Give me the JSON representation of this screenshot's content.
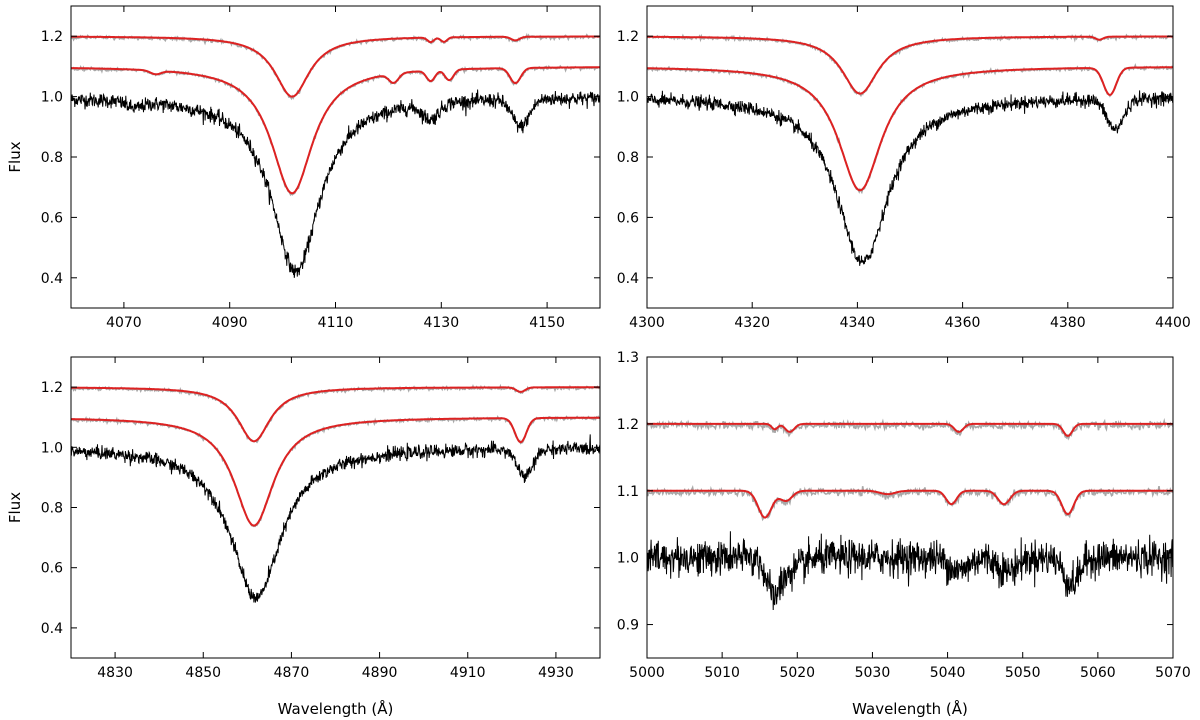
{
  "chart_data": [
    {
      "type": "line",
      "panel": "top-left",
      "title": "",
      "xlabel": "",
      "ylabel": "Flux",
      "xlim": [
        4060,
        4160
      ],
      "ylim": [
        0.3,
        1.3
      ],
      "xticks": [
        4070,
        4090,
        4110,
        4130,
        4150
      ],
      "yticks": [
        0.4,
        0.6,
        0.8,
        1.0,
        1.2
      ],
      "grid": false,
      "series": [
        {
          "role": "observed",
          "color": "#000000",
          "offset": 0.0,
          "noise": 0.012,
          "lines": [
            [
              4102.5,
              0.58,
              5.5,
              "lorentz"
            ],
            [
              4128,
              0.05,
              1.5,
              "gauss"
            ],
            [
              4145,
              0.09,
              1.6,
              "gauss"
            ],
            [
              4072,
              0.02,
              1.5,
              "gauss"
            ]
          ]
        },
        {
          "role": "component-model",
          "color": "#dd2222",
          "offset": 1.1,
          "noise": 0,
          "lines": [
            [
              4101.8,
              0.42,
              4.8,
              "lorentz"
            ],
            [
              4121,
              0.03,
              0.9,
              "gauss"
            ],
            [
              4128,
              0.035,
              0.8,
              "gauss"
            ],
            [
              4131.5,
              0.035,
              0.8,
              "gauss"
            ],
            [
              4144,
              0.05,
              1.0,
              "gauss"
            ],
            [
              4076,
              0.012,
              1.0,
              "gauss"
            ]
          ]
        },
        {
          "role": "component-model",
          "color": "#dd2222",
          "offset": 1.2,
          "noise": 0,
          "lines": [
            [
              4101.8,
              0.2,
              4.0,
              "lorentz"
            ],
            [
              4128,
              0.015,
              0.6,
              "gauss"
            ],
            [
              4130.5,
              0.015,
              0.6,
              "gauss"
            ],
            [
              4144,
              0.012,
              0.8,
              "gauss"
            ]
          ]
        }
      ]
    },
    {
      "type": "line",
      "panel": "top-right",
      "title": "",
      "xlabel": "",
      "ylabel": "",
      "xlim": [
        4300,
        4400
      ],
      "ylim": [
        0.3,
        1.3
      ],
      "xticks": [
        4300,
        4320,
        4340,
        4360,
        4380,
        4400
      ],
      "yticks": [
        0.4,
        0.6,
        0.8,
        1.0,
        1.2
      ],
      "grid": false,
      "series": [
        {
          "role": "observed",
          "color": "#000000",
          "offset": 0.0,
          "noise": 0.011,
          "lines": [
            [
              4341,
              0.55,
              6.0,
              "lorentz"
            ],
            [
              4389,
              0.1,
              1.6,
              "gauss"
            ]
          ]
        },
        {
          "role": "component-model",
          "color": "#dd2222",
          "offset": 1.1,
          "noise": 0,
          "lines": [
            [
              4340.5,
              0.41,
              5.0,
              "lorentz"
            ],
            [
              4388,
              0.09,
              1.2,
              "gauss"
            ]
          ]
        },
        {
          "role": "component-model",
          "color": "#dd2222",
          "offset": 1.2,
          "noise": 0,
          "lines": [
            [
              4340.5,
              0.19,
              4.2,
              "lorentz"
            ],
            [
              4386,
              0.01,
              0.7,
              "gauss"
            ]
          ]
        }
      ]
    },
    {
      "type": "line",
      "panel": "bottom-left",
      "title": "",
      "xlabel": "Wavelength (Å)",
      "ylabel": "Flux",
      "xlim": [
        4820,
        4940
      ],
      "ylim": [
        0.3,
        1.3
      ],
      "xticks": [
        4830,
        4850,
        4870,
        4890,
        4910,
        4930
      ],
      "yticks": [
        0.4,
        0.6,
        0.8,
        1.0,
        1.2
      ],
      "grid": false,
      "series": [
        {
          "role": "observed",
          "color": "#000000",
          "offset": 0.0,
          "noise": 0.011,
          "lines": [
            [
              4862,
              0.5,
              7.0,
              "lorentz"
            ],
            [
              4923,
              0.09,
              1.8,
              "gauss"
            ]
          ]
        },
        {
          "role": "component-model",
          "color": "#dd2222",
          "offset": 1.1,
          "noise": 0,
          "lines": [
            [
              4861.5,
              0.36,
              5.5,
              "lorentz"
            ],
            [
              4922,
              0.08,
              1.3,
              "gauss"
            ]
          ]
        },
        {
          "role": "component-model",
          "color": "#dd2222",
          "offset": 1.2,
          "noise": 0,
          "lines": [
            [
              4861.5,
              0.18,
              4.5,
              "lorentz"
            ],
            [
              4922,
              0.015,
              1.0,
              "gauss"
            ]
          ]
        }
      ]
    },
    {
      "type": "line",
      "panel": "bottom-right",
      "title": "",
      "xlabel": "Wavelength (Å)",
      "ylabel": "",
      "xlim": [
        5000,
        5070
      ],
      "ylim": [
        0.85,
        1.3
      ],
      "xticks": [
        5000,
        5010,
        5020,
        5030,
        5040,
        5050,
        5060,
        5070
      ],
      "yticks": [
        0.9,
        1.0,
        1.1,
        1.2,
        1.3
      ],
      "grid": false,
      "series": [
        {
          "role": "observed",
          "color": "#000000",
          "offset": 0.0,
          "noise": 0.013,
          "lines": [
            [
              5016.8,
              0.05,
              0.9,
              "gauss"
            ],
            [
              5019,
              0.02,
              1.5,
              "gauss"
            ],
            [
              5041.5,
              0.02,
              1.2,
              "gauss"
            ],
            [
              5048,
              0.02,
              1.2,
              "gauss"
            ],
            [
              5056.5,
              0.04,
              1.0,
              "gauss"
            ]
          ]
        },
        {
          "role": "component-model",
          "color": "#dd2222",
          "offset": 1.1,
          "noise": 0,
          "lines": [
            [
              5015.7,
              0.04,
              0.9,
              "gauss"
            ],
            [
              5018.5,
              0.015,
              0.8,
              "gauss"
            ],
            [
              5032,
              0.005,
              1.0,
              "gauss"
            ],
            [
              5040.5,
              0.02,
              0.7,
              "gauss"
            ],
            [
              5047.5,
              0.02,
              0.8,
              "gauss"
            ],
            [
              5056,
              0.035,
              0.8,
              "gauss"
            ]
          ]
        },
        {
          "role": "component-model",
          "color": "#dd2222",
          "offset": 1.2,
          "noise": 0,
          "lines": [
            [
              5017,
              0.008,
              0.4,
              "gauss"
            ],
            [
              5019,
              0.012,
              0.6,
              "gauss"
            ],
            [
              5041.5,
              0.012,
              0.6,
              "gauss"
            ],
            [
              5056,
              0.018,
              0.6,
              "gauss"
            ]
          ]
        }
      ]
    }
  ]
}
